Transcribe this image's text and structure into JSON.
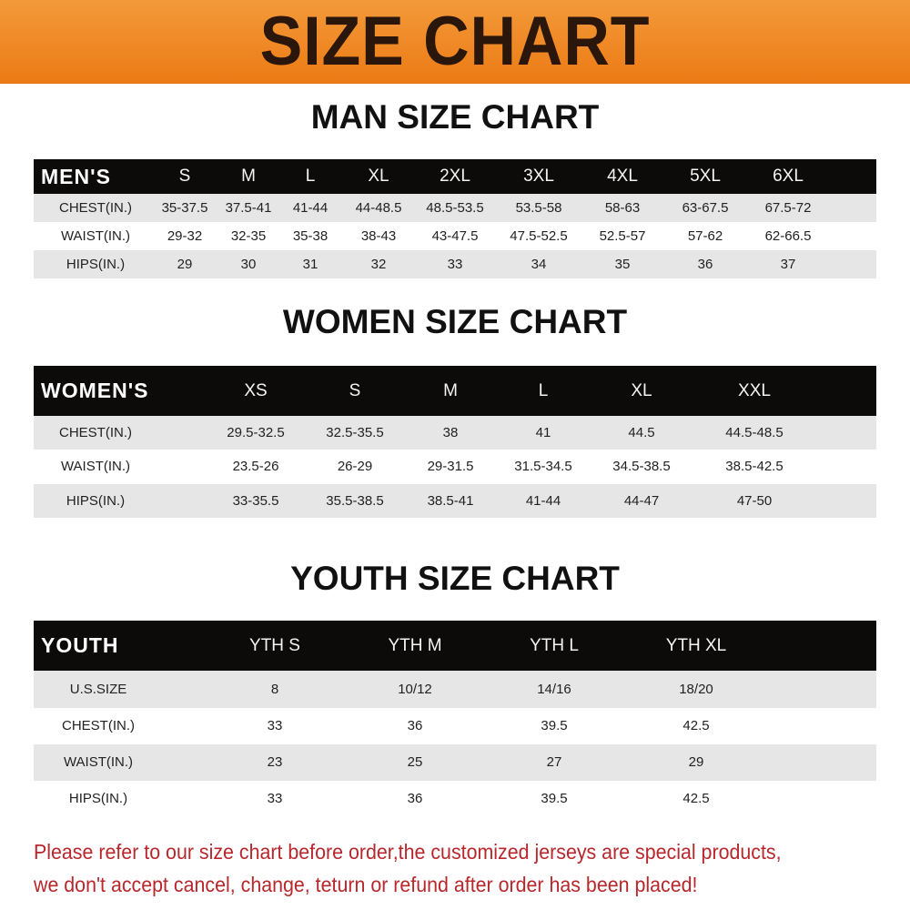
{
  "banner": {
    "title": "SIZE CHART"
  },
  "men": {
    "title": "MAN SIZE CHART",
    "header": [
      "MEN'S",
      "S",
      "M",
      "L",
      "XL",
      "2XL",
      "3XL",
      "4XL",
      "5XL",
      "6XL"
    ],
    "rows": [
      [
        "CHEST(IN.)",
        "35-37.5",
        "37.5-41",
        "41-44",
        "44-48.5",
        "48.5-53.5",
        "53.5-58",
        "58-63",
        "63-67.5",
        "67.5-72"
      ],
      [
        "WAIST(IN.)",
        "29-32",
        "32-35",
        "35-38",
        "38-43",
        "43-47.5",
        "47.5-52.5",
        "52.5-57",
        "57-62",
        "62-66.5"
      ],
      [
        "HIPS(IN.)",
        "29",
        "30",
        "31",
        "32",
        "33",
        "34",
        "35",
        "36",
        "37"
      ]
    ]
  },
  "women": {
    "title": "WOMEN SIZE CHART",
    "header": [
      "WOMEN'S",
      "XS",
      "S",
      "M",
      "L",
      "XL",
      "XXL"
    ],
    "rows": [
      [
        "CHEST(IN.)",
        "29.5-32.5",
        "32.5-35.5",
        "38",
        "41",
        "44.5",
        "44.5-48.5"
      ],
      [
        "WAIST(IN.)",
        "23.5-26",
        "26-29",
        "29-31.5",
        "31.5-34.5",
        "34.5-38.5",
        "38.5-42.5"
      ],
      [
        "HIPS(IN.)",
        "33-35.5",
        "35.5-38.5",
        "38.5-41",
        "41-44",
        "44-47",
        "47-50"
      ]
    ]
  },
  "youth": {
    "title": "YOUTH SIZE CHART",
    "header": [
      "YOUTH",
      "YTH S",
      "YTH M",
      "YTH L",
      "YTH XL"
    ],
    "rows": [
      [
        "U.S.SIZE",
        "8",
        "10/12",
        "14/16",
        "18/20"
      ],
      [
        "CHEST(IN.)",
        "33",
        "36",
        "39.5",
        "42.5"
      ],
      [
        "WAIST(IN.)",
        "23",
        "25",
        "27",
        "29"
      ],
      [
        "HIPS(IN.)",
        "33",
        "36",
        "39.5",
        "42.5"
      ]
    ]
  },
  "notice": {
    "line1": "Please refer to our size chart before order,the customized jerseys are special products,",
    "line2": "we don't accept cancel, change, teturn or refund after order has been placed!"
  },
  "colors": {
    "banner": "#ec7a14",
    "header_row": "#0d0a0a",
    "notice": "#b8272c"
  }
}
